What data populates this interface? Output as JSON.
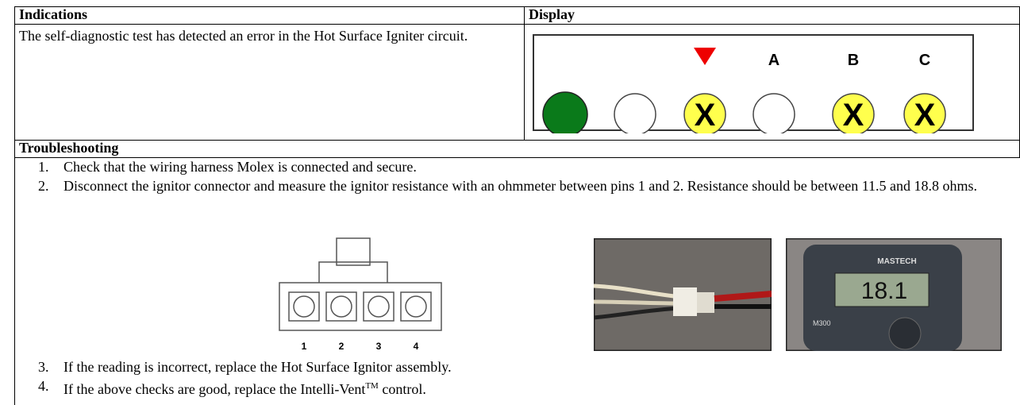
{
  "table": {
    "header": [
      "Indications",
      "Display"
    ],
    "indication": "The self-diagnostic test has detected an error in the Hot Surface Igniter circuit."
  },
  "display": {
    "labels": [
      "A",
      "B",
      "C"
    ]
  },
  "troubleshooting": {
    "title": "Troubleshooting",
    "steps": [
      {
        "num": "1.",
        "text": "Check that the wiring harness Molex is connected and secure."
      },
      {
        "num": "2.",
        "text": "Disconnect the ignitor connector and measure the ignitor resistance with an ohmmeter between pins 1 and 2. Resistance should be between 11.5 and 18.8 ohms."
      },
      {
        "num": "3.",
        "text": "If the reading is incorrect, replace the Hot Surface Ignitor assembly."
      },
      {
        "num": "4.",
        "text": "If the above checks are good, replace the Intelli-Vent",
        "sup": "TM",
        "tail": " control."
      }
    ]
  },
  "connector": {
    "pins": [
      "1",
      "2",
      "3",
      "4"
    ]
  },
  "photo": {
    "brand": "MASTECH",
    "reading": "18.1",
    "model": "M300"
  }
}
